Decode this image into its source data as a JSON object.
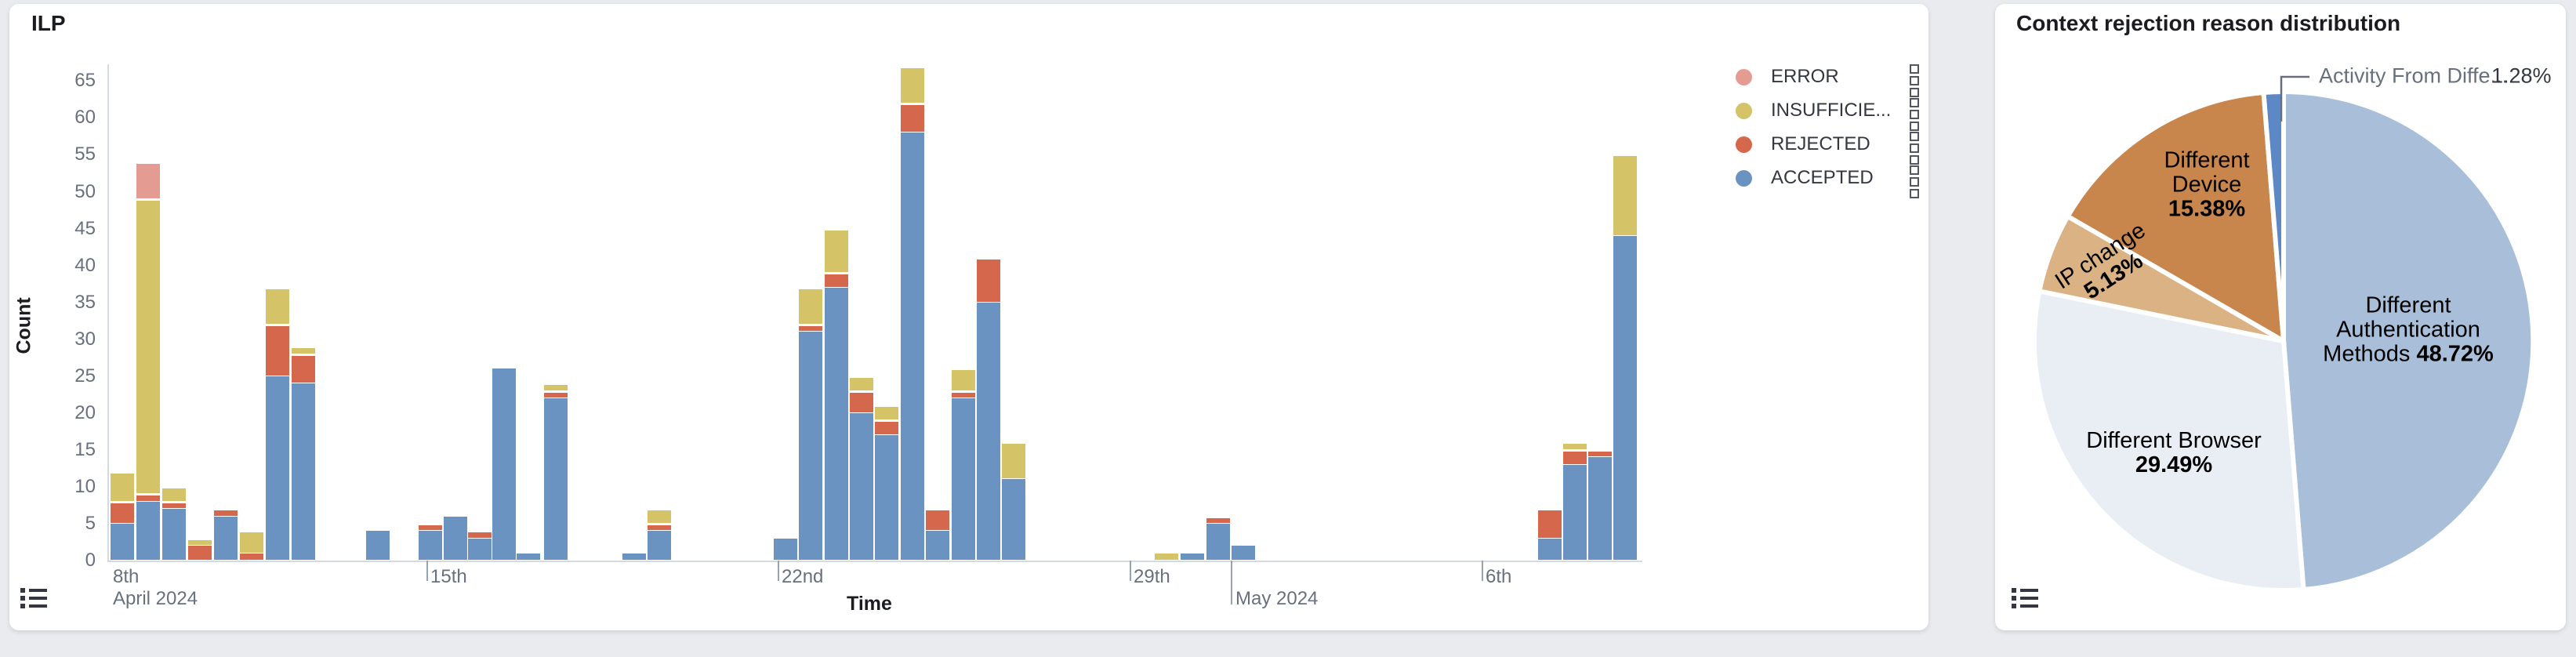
{
  "page": {
    "background": "#e9ebef"
  },
  "ilp_panel": {
    "title": "ILP",
    "y_axis_title": "Count",
    "x_axis_title": "Time",
    "legend": [
      {
        "label": "ERROR",
        "color": "#e49b92"
      },
      {
        "label": "INSUFFICIE...",
        "color": "#d5c368"
      },
      {
        "label": "REJECTED",
        "color": "#d5674d"
      },
      {
        "label": "ACCEPTED",
        "color": "#6a93c2"
      }
    ],
    "icons": {
      "legend_toggle": "legend-list-icon",
      "legend_action": "kebab-icon"
    }
  },
  "pie_panel": {
    "title": "Context rejection reason distribution",
    "callout": {
      "name": "Activity From Diffe...",
      "pct": "1.28%"
    }
  },
  "chart_data": [
    {
      "type": "bar",
      "title": "ILP",
      "xlabel": "Time",
      "ylabel": "Count",
      "ylim": [
        0,
        65
      ],
      "y_ticks": [
        0,
        5,
        10,
        15,
        20,
        25,
        30,
        35,
        40,
        45,
        50,
        55,
        60,
        65
      ],
      "stacked": true,
      "grid": false,
      "legend_position": "right",
      "series_order": [
        "ACCEPTED",
        "REJECTED",
        "INSUFFICIENT",
        "ERROR"
      ],
      "series_colors": {
        "ACCEPTED": "#6a93c2",
        "REJECTED": "#d5674d",
        "INSUFFICIENT": "#d5c368",
        "ERROR": "#e49b92"
      },
      "x_range": "Apr 8 2024 - May 8 2024, 12-hour bins",
      "x_tick_labels_row1": [
        {
          "x": 144,
          "label": "8th"
        },
        {
          "x": 549,
          "label": "15th"
        },
        {
          "x": 997,
          "label": "22nd"
        },
        {
          "x": 1446,
          "label": "29th"
        },
        {
          "x": 1895,
          "label": "6th"
        }
      ],
      "x_tick_labels_row2": [
        {
          "x": 144,
          "label": "April 2024"
        },
        {
          "x": 1576,
          "label": "May 2024"
        }
      ],
      "x_tick_marks": [
        {
          "x": 544,
          "len": 26
        },
        {
          "x": 992,
          "len": 26
        },
        {
          "x": 1441,
          "len": 26
        },
        {
          "x": 1570,
          "len": 56
        },
        {
          "x": 1890,
          "len": 26
        }
      ],
      "bars": [
        {
          "x": 141,
          "accepted": 5,
          "rejected": 3,
          "insufficient": 4,
          "error": 0
        },
        {
          "x": 174,
          "accepted": 8,
          "rejected": 1,
          "insufficient": 40,
          "error": 5
        },
        {
          "x": 207,
          "accepted": 7,
          "rejected": 1,
          "insufficient": 2,
          "error": 0
        },
        {
          "x": 240,
          "accepted": 0,
          "rejected": 2,
          "insufficient": 1,
          "error": 0
        },
        {
          "x": 273,
          "accepted": 6,
          "rejected": 1,
          "insufficient": 0,
          "error": 0
        },
        {
          "x": 306,
          "accepted": 0,
          "rejected": 1,
          "insufficient": 3,
          "error": 0
        },
        {
          "x": 339,
          "accepted": 25,
          "rejected": 7,
          "insufficient": 5,
          "error": 0
        },
        {
          "x": 372,
          "accepted": 24,
          "rejected": 4,
          "insufficient": 1,
          "error": 0
        },
        {
          "x": 467,
          "accepted": 4,
          "rejected": 0,
          "insufficient": 0,
          "error": 0
        },
        {
          "x": 534,
          "accepted": 4,
          "rejected": 1,
          "insufficient": 0,
          "error": 0
        },
        {
          "x": 566,
          "accepted": 6,
          "rejected": 0,
          "insufficient": 0,
          "error": 0
        },
        {
          "x": 597,
          "accepted": 3,
          "rejected": 1,
          "insufficient": 0,
          "error": 0
        },
        {
          "x": 628,
          "accepted": 26,
          "rejected": 0,
          "insufficient": 0,
          "error": 0
        },
        {
          "x": 659,
          "accepted": 1,
          "rejected": 0,
          "insufficient": 0,
          "error": 0
        },
        {
          "x": 694,
          "accepted": 22,
          "rejected": 1,
          "insufficient": 1,
          "error": 0
        },
        {
          "x": 794,
          "accepted": 1,
          "rejected": 0,
          "insufficient": 0,
          "error": 0
        },
        {
          "x": 826,
          "accepted": 4,
          "rejected": 1,
          "insufficient": 2,
          "error": 0
        },
        {
          "x": 987,
          "accepted": 3,
          "rejected": 0,
          "insufficient": 0,
          "error": 0
        },
        {
          "x": 1019,
          "accepted": 31,
          "rejected": 1,
          "insufficient": 5,
          "error": 0
        },
        {
          "x": 1052,
          "accepted": 37,
          "rejected": 2,
          "insufficient": 6,
          "error": 0
        },
        {
          "x": 1084,
          "accepted": 20,
          "rejected": 3,
          "insufficient": 2,
          "error": 0
        },
        {
          "x": 1116,
          "accepted": 17,
          "rejected": 2,
          "insufficient": 2,
          "error": 0
        },
        {
          "x": 1149,
          "accepted": 58,
          "rejected": 4,
          "insufficient": 5,
          "error": 0
        },
        {
          "x": 1181,
          "accepted": 4,
          "rejected": 3,
          "insufficient": 0,
          "error": 0
        },
        {
          "x": 1214,
          "accepted": 22,
          "rejected": 1,
          "insufficient": 3,
          "error": 0
        },
        {
          "x": 1246,
          "accepted": 35,
          "rejected": 6,
          "insufficient": 0,
          "error": 0
        },
        {
          "x": 1278,
          "accepted": 11,
          "rejected": 0,
          "insufficient": 5,
          "error": 0
        },
        {
          "x": 1473,
          "accepted": 0,
          "rejected": 0,
          "insufficient": 1,
          "error": 0
        },
        {
          "x": 1506,
          "accepted": 1,
          "rejected": 0,
          "insufficient": 0,
          "error": 0
        },
        {
          "x": 1539,
          "accepted": 5,
          "rejected": 1,
          "insufficient": 0,
          "error": 0
        },
        {
          "x": 1571,
          "accepted": 2,
          "rejected": 0,
          "insufficient": 0,
          "error": 0
        },
        {
          "x": 1962,
          "accepted": 3,
          "rejected": 4,
          "insufficient": 0,
          "error": 0
        },
        {
          "x": 1994,
          "accepted": 13,
          "rejected": 2,
          "insufficient": 1,
          "error": 0
        },
        {
          "x": 2026,
          "accepted": 14,
          "rejected": 1,
          "insufficient": 0,
          "error": 0
        },
        {
          "x": 2058,
          "accepted": 44,
          "rejected": 0,
          "insufficient": 11,
          "error": 0
        }
      ]
    },
    {
      "type": "pie",
      "title": "Context rejection reason distribution",
      "clockwise_from_top": true,
      "slices": [
        {
          "label": "Different Authentication Methods",
          "pct": 48.72,
          "color": "#a9bfd9"
        },
        {
          "label": "Different Browser",
          "pct": 29.49,
          "color": "#e9edf4"
        },
        {
          "label": "IP change",
          "pct": 5.13,
          "color": "#dbb283"
        },
        {
          "label": "Different Device",
          "pct": 15.38,
          "color": "#c8854c"
        },
        {
          "label": "Activity From Diffe...",
          "pct": 1.28,
          "color": "#5c88c5"
        }
      ],
      "inside_labels": [
        {
          "x": 2815,
          "y": 236,
          "rot": 0,
          "lines": [
            "Different",
            "Device"
          ],
          "pct_line": "15.38%"
        },
        {
          "x": 2688,
          "y": 340,
          "rot": -33,
          "lines": [
            "IP change"
          ],
          "pct_line": "5.13%"
        },
        {
          "x": 3072,
          "y": 421,
          "rot": 0,
          "lines": [
            "Different",
            "Authentication"
          ],
          "pct_line": "Methods |48.72%"
        },
        {
          "x": 2773,
          "y": 578,
          "rot": 0,
          "lines": [
            "Different Browser"
          ],
          "pct_line": "29.49%"
        }
      ]
    }
  ]
}
